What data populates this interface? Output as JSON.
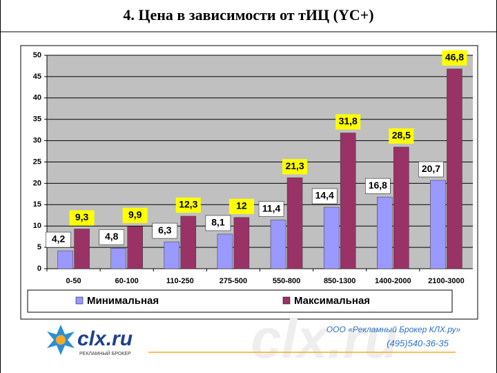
{
  "title": "4. Цена в зависимости от тИЦ (YC+)",
  "chart_data": {
    "type": "bar",
    "categories": [
      "0-50",
      "60-100",
      "110-250",
      "275-500",
      "550-800",
      "850-1300",
      "1400-2000",
      "2100-3000"
    ],
    "series": [
      {
        "name": "Минимальная",
        "color": "#9999ff",
        "values": [
          4.2,
          4.8,
          6.3,
          8.1,
          11.4,
          14.4,
          16.8,
          20.7
        ],
        "value_labels": [
          "4,2",
          "4,8",
          "6,3",
          "8,1",
          "11,4",
          "14,4",
          "16,8",
          "20,7"
        ]
      },
      {
        "name": "Максимальная",
        "color": "#993366",
        "values": [
          9.3,
          9.9,
          12.3,
          12,
          21.3,
          31.8,
          28.5,
          46.8
        ],
        "value_labels": [
          "9,3",
          "9,9",
          "12,3",
          "12",
          "21,3",
          "31,8",
          "28,5",
          "46,8"
        ]
      }
    ],
    "ylim": [
      0,
      50
    ],
    "yticks": [
      0,
      5,
      10,
      15,
      20,
      25,
      30,
      35,
      40,
      45,
      50
    ],
    "grid": true,
    "legend": "bottom"
  },
  "footer": {
    "logo": "clx.ru",
    "logo_sub": "РЕКЛАМНЫЙ БРОКЕР",
    "company": "ООО «Рекламный Брокер КЛХ.ру»",
    "phone": "(495)540-36-35"
  }
}
